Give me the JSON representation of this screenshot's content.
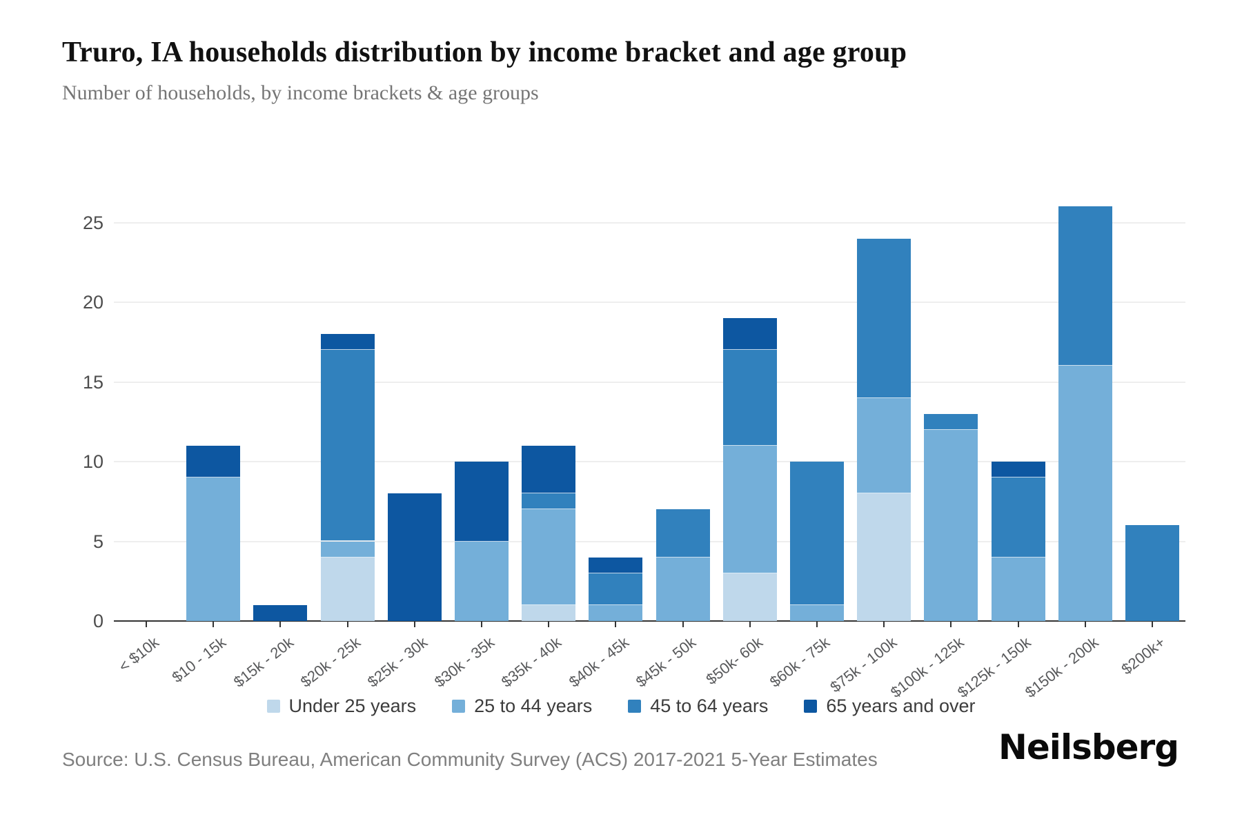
{
  "header": {
    "title": "Truro, IA households distribution by income bracket and age group",
    "subtitle": "Number of households, by income brackets & age groups"
  },
  "footer": {
    "source": "Source: U.S. Census Bureau, American Community Survey (ACS) 2017-2021 5-Year Estimates",
    "brand": "Neilsberg"
  },
  "chart_data": {
    "type": "bar",
    "stacked": true,
    "title": "Truro, IA households distribution by income bracket and age group",
    "xlabel": "",
    "ylabel": "Number of households",
    "categories": [
      "< $10k",
      "$10 - 15k",
      "$15k - 20k",
      "$20k - 25k",
      "$25k - 30k",
      "$30k - 35k",
      "$35k - 40k",
      "$40k - 45k",
      "$45k - 50k",
      "$50k- 60k",
      "$60k - 75k",
      "$75k - 100k",
      "$100k - 125k",
      "$125k - 150k",
      "$150k - 200k",
      "$200k+"
    ],
    "series": [
      {
        "name": "Under 25 years",
        "color": "#BFD8EB",
        "values": [
          0,
          0,
          0,
          4,
          0,
          0,
          1,
          0,
          0,
          3,
          0,
          8,
          0,
          0,
          0,
          0
        ]
      },
      {
        "name": "25 to 44 years",
        "color": "#74AFD9",
        "values": [
          0,
          9,
          0,
          1,
          0,
          5,
          6,
          1,
          4,
          8,
          1,
          6,
          12,
          4,
          16,
          0
        ]
      },
      {
        "name": "45 to 64 years",
        "color": "#3181BD",
        "values": [
          0,
          0,
          0,
          12,
          0,
          0,
          1,
          2,
          3,
          6,
          9,
          10,
          1,
          5,
          10,
          6
        ]
      },
      {
        "name": "65 years and over",
        "color": "#0D57A1",
        "values": [
          0,
          2,
          1,
          1,
          8,
          5,
          3,
          1,
          0,
          2,
          0,
          0,
          0,
          1,
          0,
          0
        ]
      }
    ],
    "totals": [
      0,
      11,
      1,
      18,
      8,
      10,
      11,
      4,
      7,
      19,
      10,
      24,
      13,
      10,
      26,
      6
    ],
    "y_ticks": [
      0,
      5,
      10,
      15,
      20,
      25
    ],
    "ylim": [
      0,
      26
    ],
    "grid": "horizontal",
    "legend_position": "bottom"
  }
}
